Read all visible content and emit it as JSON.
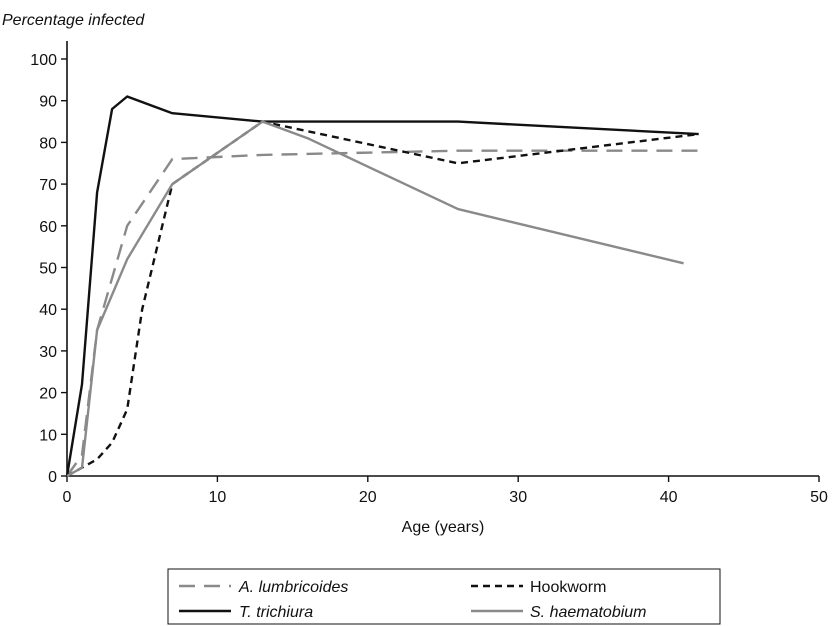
{
  "chart_data": {
    "type": "line",
    "title": "",
    "ylabel": "Percentage infected",
    "xlabel": "Age (years)",
    "xlim": [
      0,
      50
    ],
    "ylim": [
      0,
      100
    ],
    "xticks": [
      0,
      10,
      20,
      30,
      40,
      50
    ],
    "yticks": [
      0,
      10,
      20,
      30,
      40,
      50,
      60,
      70,
      80,
      90,
      100
    ],
    "grid": false,
    "legend_position": "bottom",
    "series": [
      {
        "name": "A. lumbricoides",
        "style": "long-dash",
        "color": "#8a8a8a",
        "italic": true,
        "x": [
          0,
          1,
          2,
          4,
          7,
          13,
          26,
          42
        ],
        "y": [
          0,
          5,
          35,
          60,
          76,
          77,
          78,
          78
        ]
      },
      {
        "name": "Hookworm",
        "style": "short-dash",
        "color": "#111111",
        "italic": false,
        "x": [
          0,
          1,
          2,
          3,
          4,
          5,
          7,
          13,
          26,
          42
        ],
        "y": [
          0,
          2,
          4,
          8,
          16,
          40,
          70,
          85,
          75,
          82
        ]
      },
      {
        "name": "T. trichiura",
        "style": "solid",
        "color": "#111111",
        "italic": true,
        "x": [
          0,
          1,
          2,
          3,
          4,
          7,
          13,
          26,
          42
        ],
        "y": [
          0,
          22,
          68,
          88,
          91,
          87,
          85,
          85,
          82
        ]
      },
      {
        "name": "S. haematobium",
        "style": "solid",
        "color": "#8a8a8a",
        "italic": true,
        "x": [
          0,
          1,
          2,
          4,
          7,
          13,
          16,
          26,
          41
        ],
        "y": [
          0,
          2,
          35,
          52,
          70,
          85,
          81,
          64,
          51
        ]
      }
    ]
  }
}
